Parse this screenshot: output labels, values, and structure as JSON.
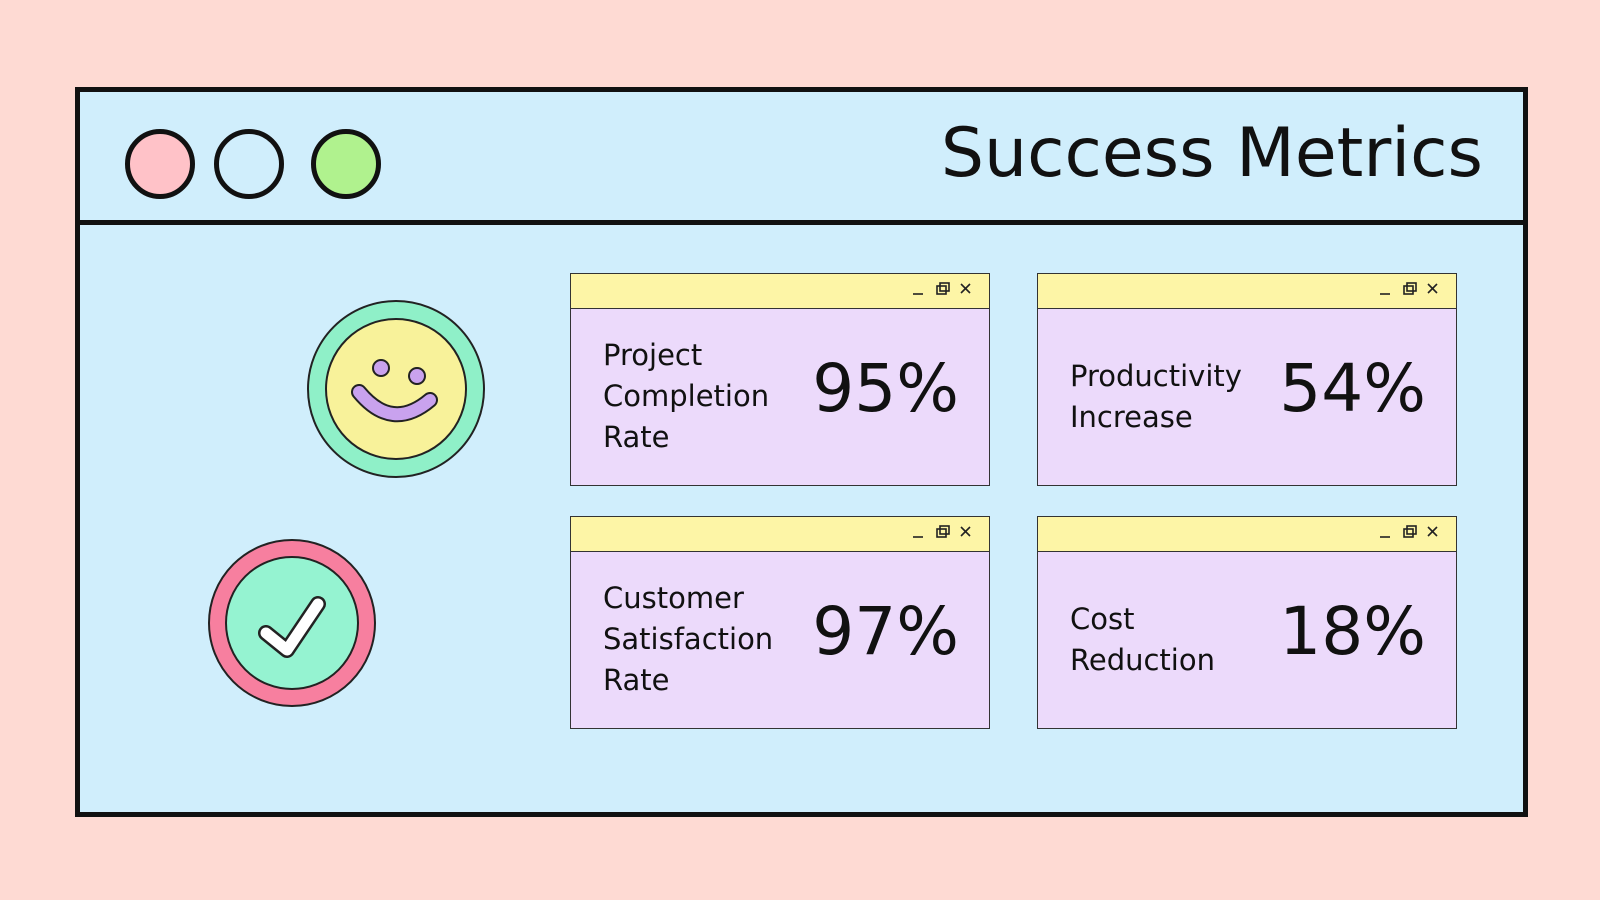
{
  "header": {
    "title": "Success Metrics"
  },
  "metrics": [
    {
      "label": "Project Completion Rate",
      "value": "95%"
    },
    {
      "label": "Productivity Increase",
      "value": "54%"
    },
    {
      "label": "Customer Satisfaction Rate",
      "value": "97%"
    },
    {
      "label": "Cost Reduction",
      "value": "18%"
    }
  ]
}
